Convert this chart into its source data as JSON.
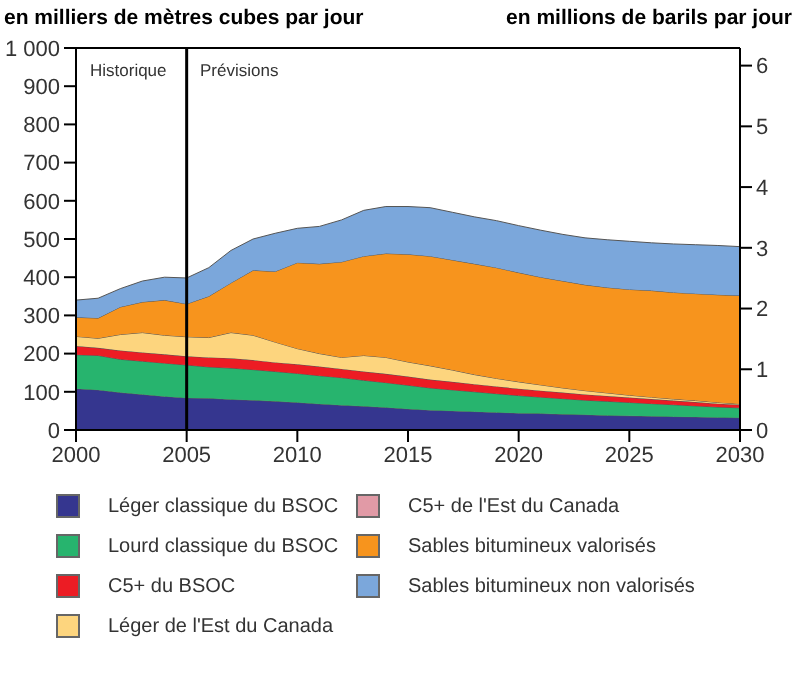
{
  "chart_data": {
    "type": "area",
    "stacked": true,
    "ylabel": "en milliers de mètres cubes par jour",
    "y2label": "en millions de barils par jour",
    "x": [
      2000,
      2001,
      2002,
      2003,
      2004,
      2005,
      2006,
      2007,
      2008,
      2009,
      2010,
      2011,
      2012,
      2013,
      2014,
      2015,
      2016,
      2017,
      2018,
      2019,
      2020,
      2021,
      2022,
      2023,
      2024,
      2025,
      2026,
      2027,
      2028,
      2029,
      2030
    ],
    "series": [
      {
        "name": "Léger classique du BSOC",
        "color": "#35368f",
        "values": [
          108,
          105,
          98,
          93,
          88,
          84,
          83,
          80,
          78,
          75,
          72,
          68,
          65,
          62,
          59,
          55,
          52,
          50,
          48,
          46,
          44,
          43,
          41,
          40,
          38,
          37,
          36,
          35,
          34,
          33,
          32
        ]
      },
      {
        "name": "Lourd classique du BSOC",
        "color": "#27b46e",
        "values": [
          89,
          90,
          87,
          87,
          87,
          86,
          82,
          82,
          80,
          78,
          76,
          74,
          72,
          68,
          65,
          62,
          58,
          55,
          52,
          49,
          46,
          43,
          41,
          38,
          37,
          35,
          33,
          31,
          29,
          27,
          26
        ]
      },
      {
        "name": "C5+ du BSOC",
        "color": "#ec1c24",
        "values": [
          23,
          20,
          23,
          23,
          23,
          23,
          25,
          26,
          25,
          24,
          24,
          24,
          23,
          23,
          23,
          23,
          22,
          21,
          20,
          19,
          18,
          17,
          16,
          15,
          14,
          13,
          12,
          11,
          10,
          9,
          8
        ]
      },
      {
        "name": "Léger de l'Est du Canada",
        "color": "#fdd57e",
        "values": [
          25,
          25,
          42,
          52,
          50,
          51,
          52,
          67,
          65,
          53,
          41,
          34,
          30,
          42,
          43,
          38,
          36,
          31,
          25,
          21,
          18,
          15,
          12,
          10,
          8,
          6,
          5,
          4,
          4,
          3,
          2
        ]
      },
      {
        "name": "C5+ de l'Est du Canada",
        "color": "#e19aa6",
        "values": [
          null,
          null,
          null,
          null,
          null,
          null,
          null,
          null,
          null,
          null,
          null,
          null,
          null,
          null,
          null,
          null,
          null,
          null,
          null,
          null,
          null,
          null,
          null,
          null,
          null,
          null,
          null,
          null,
          null,
          null,
          null
        ]
      },
      {
        "name": "Sables bitumineux valorisés",
        "color": "#f7941d",
        "values": [
          50,
          53,
          72,
          80,
          92,
          86,
          108,
          130,
          170,
          185,
          225,
          235,
          250,
          260,
          272,
          282,
          287,
          288,
          290,
          290,
          286,
          282,
          280,
          277,
          276,
          277,
          279,
          279,
          280,
          282,
          284
        ]
      },
      {
        "name": "Sables bitumineux non valorisés",
        "color": "#7ba7db",
        "values": [
          45,
          52,
          48,
          55,
          60,
          68,
          75,
          85,
          82,
          100,
          90,
          98,
          110,
          120,
          123,
          125,
          127,
          125,
          123,
          123,
          123,
          123,
          122,
          123,
          125,
          126,
          125,
          127,
          128,
          129,
          128
        ]
      }
    ],
    "xlim": [
      2000,
      2030
    ],
    "xticks": [
      2000,
      2005,
      2010,
      2015,
      2020,
      2025,
      2030
    ],
    "ylim": [
      0,
      1000
    ],
    "yticks": [
      0,
      100,
      200,
      300,
      400,
      500,
      600,
      700,
      800,
      900,
      {
        "value": 1000,
        "label": "1 000"
      }
    ],
    "y2lim": [
      0,
      6.29
    ],
    "y2ticks": [
      0,
      1,
      2,
      3,
      4,
      5,
      6
    ],
    "ref_lines": [
      {
        "axis": "x",
        "value": 2005,
        "color": "#000000"
      }
    ],
    "annotations": [
      "Historique",
      "Prévisions"
    ],
    "grid": false,
    "legend": "bottom"
  }
}
